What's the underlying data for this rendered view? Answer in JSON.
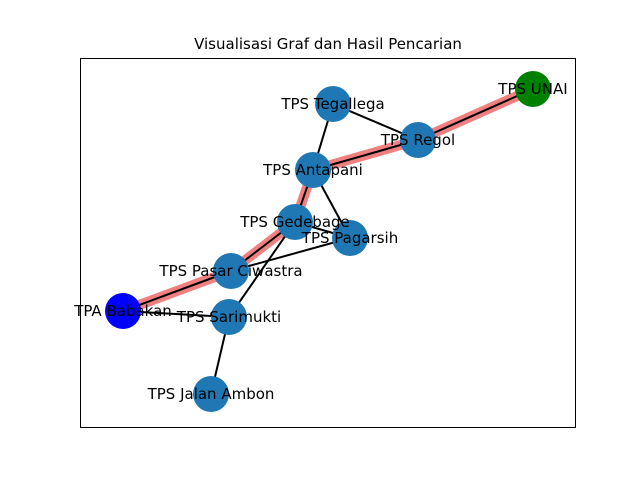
{
  "title": "Visualisasi Graf dan Hasil Pencarian",
  "colors": {
    "node_default": "#1f77b4",
    "node_start": "#0000ff",
    "node_goal": "#008000",
    "edge": "#000000",
    "path_highlight": "#f08080"
  },
  "nodes": [
    {
      "id": "tegallega",
      "label": "TPS Tegallega",
      "role": "default"
    },
    {
      "id": "unai",
      "label": "TPS UNAI",
      "role": "goal"
    },
    {
      "id": "regol",
      "label": "TPS Regol",
      "role": "default"
    },
    {
      "id": "antapani",
      "label": "TPS Antapani",
      "role": "default"
    },
    {
      "id": "gedebage",
      "label": "TPS Gedebage",
      "role": "default"
    },
    {
      "id": "pagarsih",
      "label": "TPS Pagarsih",
      "role": "default"
    },
    {
      "id": "cijuastra",
      "label": "TPS Pasar Ciwastra",
      "role": "default"
    },
    {
      "id": "babakan",
      "label": "TPA Babakan",
      "role": "start"
    },
    {
      "id": "sarimukti",
      "label": "TPS Sarimukti",
      "role": "default"
    },
    {
      "id": "ambon",
      "label": "TPS Jalan Ambon",
      "role": "default"
    }
  ],
  "edges": [
    [
      "tegallega",
      "regol"
    ],
    [
      "tegallega",
      "antapani"
    ],
    [
      "regol",
      "unai"
    ],
    [
      "antapani",
      "gedebage"
    ],
    [
      "antapani",
      "pagarsih"
    ],
    [
      "gedebage",
      "pagarsih"
    ],
    [
      "gedebage",
      "cijuastra"
    ],
    [
      "gedebage",
      "sarimukti"
    ],
    [
      "pagarsih",
      "cijuastra"
    ],
    [
      "cijuastra",
      "babakan"
    ],
    [
      "babakan",
      "sarimukti"
    ],
    [
      "sarimukti",
      "ambon"
    ],
    [
      "regol",
      "antapani"
    ]
  ],
  "path": [
    "babakan",
    "cijuastra",
    "gedebage",
    "antapani",
    "regol",
    "unai"
  ]
}
